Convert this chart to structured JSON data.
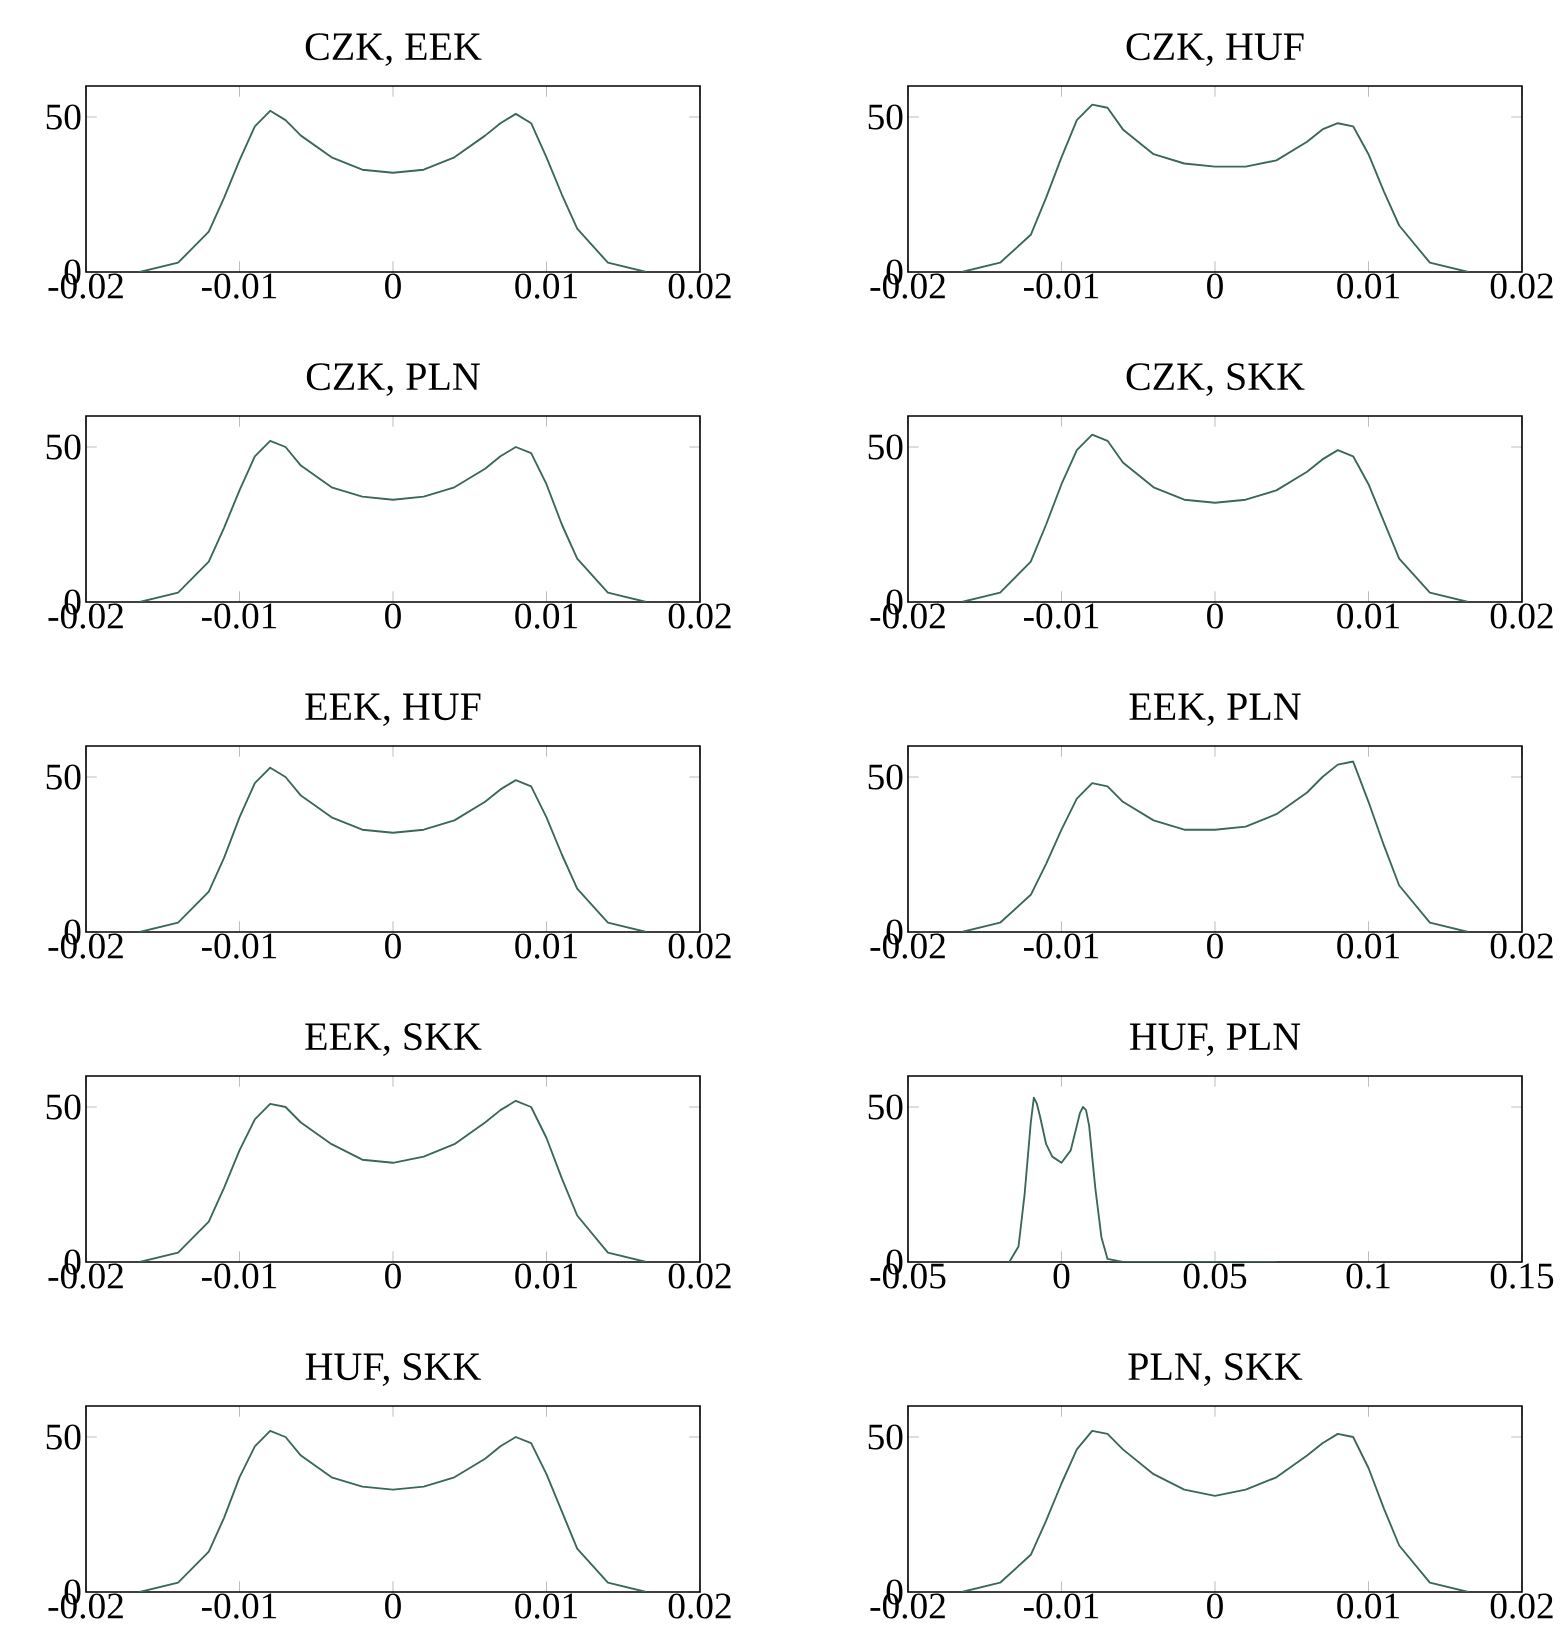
{
  "chart_data": [
    {
      "type": "line",
      "title": "CZK, EEK",
      "color": "#3a6858",
      "xlim": [
        -0.02,
        0.02
      ],
      "ylim": [
        0,
        60
      ],
      "xticks": [
        -0.02,
        -0.01,
        0,
        0.01,
        0.02
      ],
      "yticks": [
        0,
        50
      ],
      "x": [
        -0.0165,
        -0.014,
        -0.012,
        -0.011,
        -0.01,
        -0.009,
        -0.008,
        -0.007,
        -0.006,
        -0.004,
        -0.002,
        0,
        0.002,
        0.004,
        0.006,
        0.007,
        0.008,
        0.009,
        0.01,
        0.011,
        0.012,
        0.014,
        0.0165
      ],
      "values": [
        0,
        3,
        13,
        24,
        36,
        47,
        52,
        49,
        44,
        37,
        33,
        32,
        33,
        37,
        44,
        48,
        51,
        48,
        37,
        25,
        14,
        3,
        0
      ]
    },
    {
      "type": "line",
      "title": "CZK, HUF",
      "color": "#3a6858",
      "xlim": [
        -0.02,
        0.02
      ],
      "ylim": [
        0,
        60
      ],
      "xticks": [
        -0.02,
        -0.01,
        0,
        0.01,
        0.02
      ],
      "yticks": [
        0,
        50
      ],
      "x": [
        -0.0165,
        -0.014,
        -0.012,
        -0.011,
        -0.01,
        -0.009,
        -0.008,
        -0.007,
        -0.006,
        -0.004,
        -0.002,
        0,
        0.002,
        0.004,
        0.006,
        0.007,
        0.008,
        0.009,
        0.01,
        0.011,
        0.012,
        0.014,
        0.0165
      ],
      "values": [
        0,
        3,
        12,
        24,
        37,
        49,
        54,
        53,
        46,
        38,
        35,
        34,
        34,
        36,
        42,
        46,
        48,
        47,
        38,
        26,
        15,
        3,
        0
      ]
    },
    {
      "type": "line",
      "title": "CZK, PLN",
      "color": "#3a6858",
      "xlim": [
        -0.02,
        0.02
      ],
      "ylim": [
        0,
        60
      ],
      "xticks": [
        -0.02,
        -0.01,
        0,
        0.01,
        0.02
      ],
      "yticks": [
        0,
        50
      ],
      "x": [
        -0.0165,
        -0.014,
        -0.012,
        -0.011,
        -0.01,
        -0.009,
        -0.008,
        -0.007,
        -0.006,
        -0.004,
        -0.002,
        0,
        0.002,
        0.004,
        0.006,
        0.007,
        0.008,
        0.009,
        0.01,
        0.011,
        0.012,
        0.014,
        0.0165
      ],
      "values": [
        0,
        3,
        13,
        24,
        36,
        47,
        52,
        50,
        44,
        37,
        34,
        33,
        34,
        37,
        43,
        47,
        50,
        48,
        38,
        25,
        14,
        3,
        0
      ]
    },
    {
      "type": "line",
      "title": "CZK, SKK",
      "color": "#3a6858",
      "xlim": [
        -0.02,
        0.02
      ],
      "ylim": [
        0,
        60
      ],
      "xticks": [
        -0.02,
        -0.01,
        0,
        0.01,
        0.02
      ],
      "yticks": [
        0,
        50
      ],
      "x": [
        -0.0165,
        -0.014,
        -0.012,
        -0.011,
        -0.01,
        -0.009,
        -0.008,
        -0.007,
        -0.006,
        -0.004,
        -0.002,
        0,
        0.002,
        0.004,
        0.006,
        0.007,
        0.008,
        0.009,
        0.01,
        0.011,
        0.012,
        0.014,
        0.0165
      ],
      "values": [
        0,
        3,
        13,
        25,
        38,
        49,
        54,
        52,
        45,
        37,
        33,
        32,
        33,
        36,
        42,
        46,
        49,
        47,
        38,
        26,
        14,
        3,
        0
      ]
    },
    {
      "type": "line",
      "title": "EEK, HUF",
      "color": "#3a6858",
      "xlim": [
        -0.02,
        0.02
      ],
      "ylim": [
        0,
        60
      ],
      "xticks": [
        -0.02,
        -0.01,
        0,
        0.01,
        0.02
      ],
      "yticks": [
        0,
        50
      ],
      "x": [
        -0.0165,
        -0.014,
        -0.012,
        -0.011,
        -0.01,
        -0.009,
        -0.008,
        -0.007,
        -0.006,
        -0.004,
        -0.002,
        0,
        0.002,
        0.004,
        0.006,
        0.007,
        0.008,
        0.009,
        0.01,
        0.011,
        0.012,
        0.014,
        0.0165
      ],
      "values": [
        0,
        3,
        13,
        24,
        37,
        48,
        53,
        50,
        44,
        37,
        33,
        32,
        33,
        36,
        42,
        46,
        49,
        47,
        37,
        25,
        14,
        3,
        0
      ]
    },
    {
      "type": "line",
      "title": "EEK, PLN",
      "color": "#3a6858",
      "xlim": [
        -0.02,
        0.02
      ],
      "ylim": [
        0,
        60
      ],
      "xticks": [
        -0.02,
        -0.01,
        0,
        0.01,
        0.02
      ],
      "yticks": [
        0,
        50
      ],
      "x": [
        -0.0165,
        -0.014,
        -0.012,
        -0.011,
        -0.01,
        -0.009,
        -0.008,
        -0.007,
        -0.006,
        -0.004,
        -0.002,
        0,
        0.002,
        0.004,
        0.006,
        0.007,
        0.008,
        0.009,
        0.01,
        0.011,
        0.012,
        0.014,
        0.0165
      ],
      "values": [
        0,
        3,
        12,
        22,
        33,
        43,
        48,
        47,
        42,
        36,
        33,
        33,
        34,
        38,
        45,
        50,
        54,
        55,
        42,
        28,
        15,
        3,
        0
      ]
    },
    {
      "type": "line",
      "title": "EEK, SKK",
      "color": "#3a6858",
      "xlim": [
        -0.02,
        0.02
      ],
      "ylim": [
        0,
        60
      ],
      "xticks": [
        -0.02,
        -0.01,
        0,
        0.01,
        0.02
      ],
      "yticks": [
        0,
        50
      ],
      "x": [
        -0.0165,
        -0.014,
        -0.012,
        -0.011,
        -0.01,
        -0.009,
        -0.008,
        -0.007,
        -0.006,
        -0.004,
        -0.002,
        0,
        0.002,
        0.004,
        0.006,
        0.007,
        0.008,
        0.009,
        0.01,
        0.011,
        0.012,
        0.014,
        0.0165
      ],
      "values": [
        0,
        3,
        13,
        24,
        36,
        46,
        51,
        50,
        45,
        38,
        33,
        32,
        34,
        38,
        45,
        49,
        52,
        50,
        40,
        27,
        15,
        3,
        0
      ]
    },
    {
      "type": "line",
      "title": "HUF, PLN",
      "color": "#3a6858",
      "xlim": [
        -0.05,
        0.15
      ],
      "ylim": [
        0,
        60
      ],
      "xticks": [
        -0.05,
        0,
        0.05,
        0.1,
        0.15
      ],
      "yticks": [
        0,
        50
      ],
      "x": [
        -0.017,
        -0.014,
        -0.012,
        -0.01,
        -0.009,
        -0.008,
        -0.007,
        -0.005,
        -0.003,
        0,
        0.003,
        0.005,
        0.006,
        0.007,
        0.008,
        0.009,
        0.011,
        0.013,
        0.015,
        0.02,
        0.047,
        0.07
      ],
      "values": [
        0,
        5,
        22,
        45,
        53,
        51,
        47,
        38,
        34,
        32,
        36,
        44,
        48,
        50,
        49,
        44,
        24,
        8,
        1,
        0,
        0,
        0
      ]
    },
    {
      "type": "line",
      "title": "HUF, SKK",
      "color": "#3a6858",
      "xlim": [
        -0.02,
        0.02
      ],
      "ylim": [
        0,
        60
      ],
      "xticks": [
        -0.02,
        -0.01,
        0,
        0.01,
        0.02
      ],
      "yticks": [
        0,
        50
      ],
      "x": [
        -0.0165,
        -0.014,
        -0.012,
        -0.011,
        -0.01,
        -0.009,
        -0.008,
        -0.007,
        -0.006,
        -0.004,
        -0.002,
        0,
        0.002,
        0.004,
        0.006,
        0.007,
        0.008,
        0.009,
        0.01,
        0.011,
        0.012,
        0.014,
        0.0165
      ],
      "values": [
        0,
        3,
        13,
        24,
        37,
        47,
        52,
        50,
        44,
        37,
        34,
        33,
        34,
        37,
        43,
        47,
        50,
        48,
        38,
        26,
        14,
        3,
        0
      ]
    },
    {
      "type": "line",
      "title": "PLN, SKK",
      "color": "#3a6858",
      "xlim": [
        -0.02,
        0.02
      ],
      "ylim": [
        0,
        60
      ],
      "xticks": [
        -0.02,
        -0.01,
        0,
        0.01,
        0.02
      ],
      "yticks": [
        0,
        50
      ],
      "x": [
        -0.0165,
        -0.014,
        -0.012,
        -0.011,
        -0.01,
        -0.009,
        -0.008,
        -0.007,
        -0.006,
        -0.004,
        -0.002,
        0,
        0.002,
        0.004,
        0.006,
        0.007,
        0.008,
        0.009,
        0.01,
        0.011,
        0.012,
        0.014,
        0.0165
      ],
      "values": [
        0,
        3,
        12,
        23,
        35,
        46,
        52,
        51,
        46,
        38,
        33,
        31,
        33,
        37,
        44,
        48,
        51,
        50,
        40,
        27,
        15,
        3,
        0
      ]
    }
  ]
}
